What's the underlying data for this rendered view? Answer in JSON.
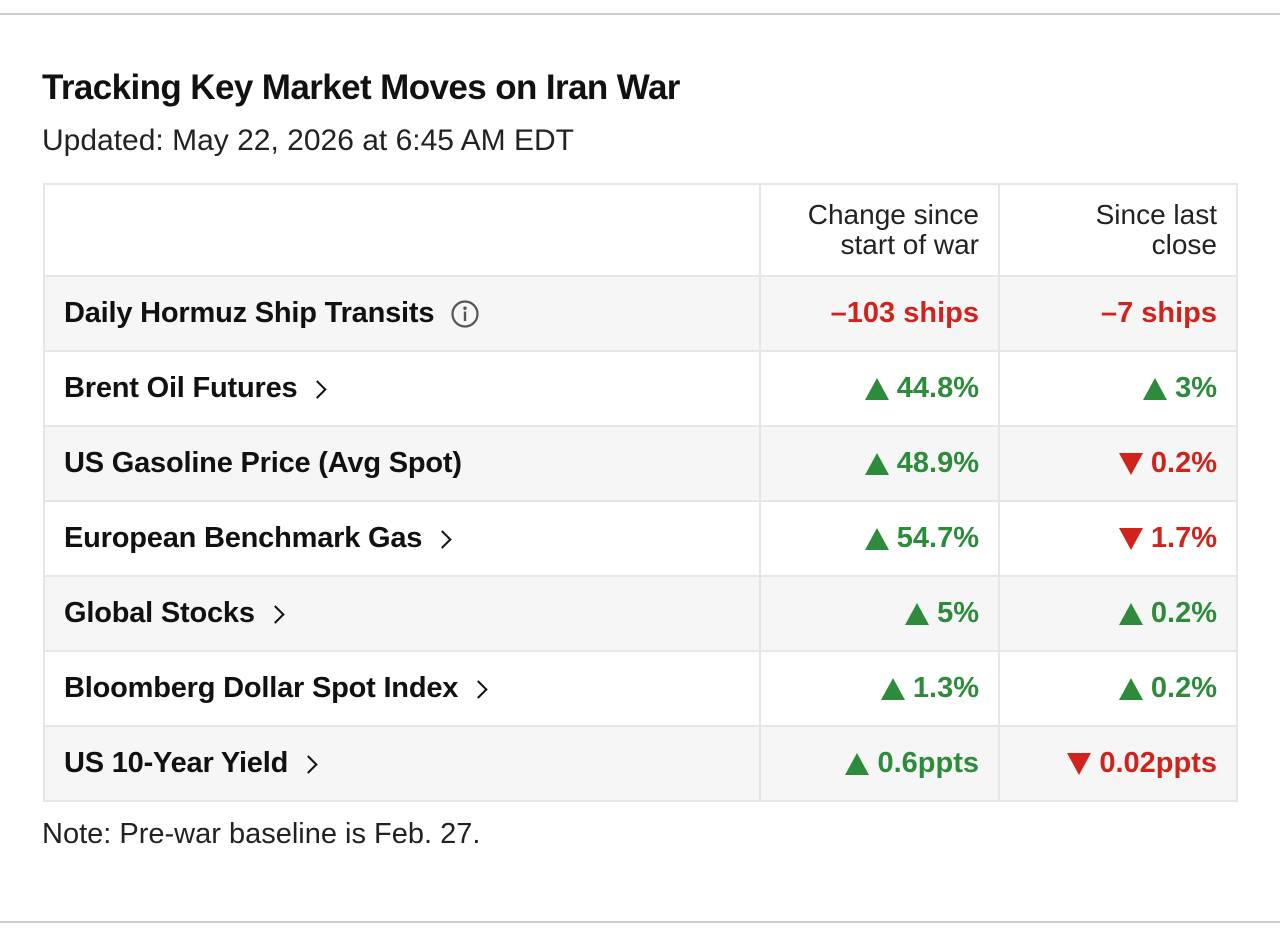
{
  "header": {
    "title": "Tracking Key Market Moves on Iran War",
    "updated": "Updated: May 22, 2026 at 6:45 AM EDT"
  },
  "chart_data": {
    "type": "table",
    "columns": [
      "",
      "Change since start of war",
      "Since last close"
    ],
    "rows": [
      {
        "label": "Daily Hormuz Ship Transits",
        "icon": "info-icon",
        "since_start": "–103 ships",
        "since_start_dir": "none-down",
        "since_close": "–7 ships",
        "since_close_dir": "none-down"
      },
      {
        "label": "Brent Oil Futures",
        "icon": "chevron-right-icon",
        "since_start": "44.8%",
        "since_start_dir": "up",
        "since_close": "3%",
        "since_close_dir": "up"
      },
      {
        "label": "US Gasoline Price (Avg Spot)",
        "icon": "",
        "since_start": "48.9%",
        "since_start_dir": "up",
        "since_close": "0.2%",
        "since_close_dir": "down"
      },
      {
        "label": "European Benchmark Gas",
        "icon": "chevron-right-icon",
        "since_start": "54.7%",
        "since_start_dir": "up",
        "since_close": "1.7%",
        "since_close_dir": "down"
      },
      {
        "label": "Global Stocks",
        "icon": "chevron-right-icon",
        "since_start": "5%",
        "since_start_dir": "up",
        "since_close": "0.2%",
        "since_close_dir": "up"
      },
      {
        "label": "Bloomberg Dollar Spot Index",
        "icon": "chevron-right-icon",
        "since_start": "1.3%",
        "since_start_dir": "up",
        "since_close": "0.2%",
        "since_close_dir": "up"
      },
      {
        "label": "US 10-Year Yield",
        "icon": "chevron-right-icon",
        "since_start": "0.6ppts",
        "since_start_dir": "up",
        "since_close": "0.02ppts",
        "since_close_dir": "down"
      }
    ]
  },
  "colors": {
    "up": "#2e8b3c",
    "down": "#d0231b",
    "row_shade": "#f6f6f6",
    "border": "#e6e6e6"
  },
  "note": "Note: Pre-war baseline is Feb. 27."
}
